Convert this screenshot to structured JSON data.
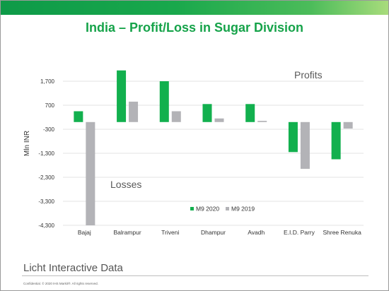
{
  "slide": {
    "title": "India – Profit/Loss in Sugar Division",
    "brand": "Licht Interactive Data",
    "copyright": "Confidential. © 2020 IHS Markit®. All rights reserved.",
    "band_colors": [
      "#0e9a48",
      "#a8dc7c"
    ]
  },
  "chart_data": {
    "type": "bar",
    "title": "India – Profit/Loss in Sugar Division",
    "ylabel": "Mln INR",
    "xlabel": "",
    "categories": [
      "Bajaj",
      "Balrampur",
      "Triveni",
      "Dhampur",
      "Avadh",
      "E.I.D. Parry",
      "Shree Renuka"
    ],
    "series": [
      {
        "name": "M9 2020",
        "color": "#12b04e",
        "values": [
          450,
          2150,
          1700,
          750,
          750,
          -1250,
          -1550
        ]
      },
      {
        "name": "M9 2019",
        "color": "#b3b3b7",
        "values": [
          -4300,
          850,
          450,
          150,
          50,
          -1950,
          -270
        ]
      }
    ],
    "ylim": [
      -4300,
      2700
    ],
    "yticks": [
      1700,
      700,
      -300,
      -1300,
      -2300,
      -3300,
      -4300
    ],
    "ytick_labels": [
      "1,700",
      "700",
      "-300",
      "-1,300",
      "-2,300",
      "-3,300",
      "-4,300"
    ],
    "grid": true,
    "legend": "bottom-center",
    "annotations": [
      "Profits",
      "Losses"
    ]
  }
}
